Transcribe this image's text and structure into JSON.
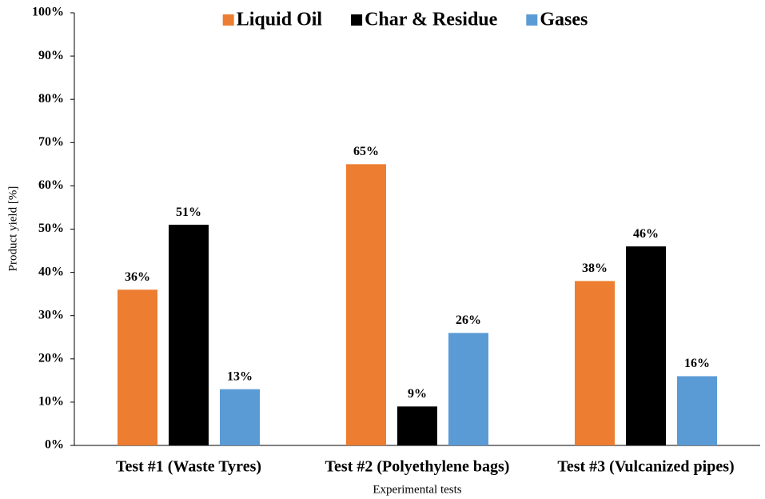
{
  "chart_data": {
    "type": "bar",
    "x_label": "Experimental tests",
    "y_label": "Product yield [%]",
    "categories": [
      "Test #1 (Waste Tyres)",
      "Test #2 (Polyethylene bags)",
      "Test #3 (Vulcanized pipes)"
    ],
    "series": [
      {
        "name": "Liquid Oil",
        "color": "#ed7d31",
        "values": [
          36,
          65,
          38
        ],
        "value_labels": [
          "36%",
          "65%",
          "38%"
        ]
      },
      {
        "name": "Char & Residue",
        "color": "#000000",
        "values": [
          51,
          9,
          46
        ],
        "value_labels": [
          "51%",
          "9%",
          "46%"
        ]
      },
      {
        "name": "Gases",
        "color": "#5b9bd5",
        "values": [
          13,
          26,
          16
        ],
        "value_labels": [
          "13%",
          "26%",
          "16%"
        ]
      }
    ],
    "ylim": [
      0,
      100
    ],
    "yticks": [
      {
        "value": 0,
        "label": "0%"
      },
      {
        "value": 10,
        "label": "10%"
      },
      {
        "value": 20,
        "label": "20%"
      },
      {
        "value": 30,
        "label": "30%"
      },
      {
        "value": 40,
        "label": "40%"
      },
      {
        "value": 50,
        "label": "50%"
      },
      {
        "value": 60,
        "label": "60%"
      },
      {
        "value": 70,
        "label": "70%"
      },
      {
        "value": 80,
        "label": "80%"
      },
      {
        "value": 90,
        "label": "90%"
      },
      {
        "value": 100,
        "label": "100%"
      }
    ],
    "grid": false,
    "legend": "top"
  }
}
